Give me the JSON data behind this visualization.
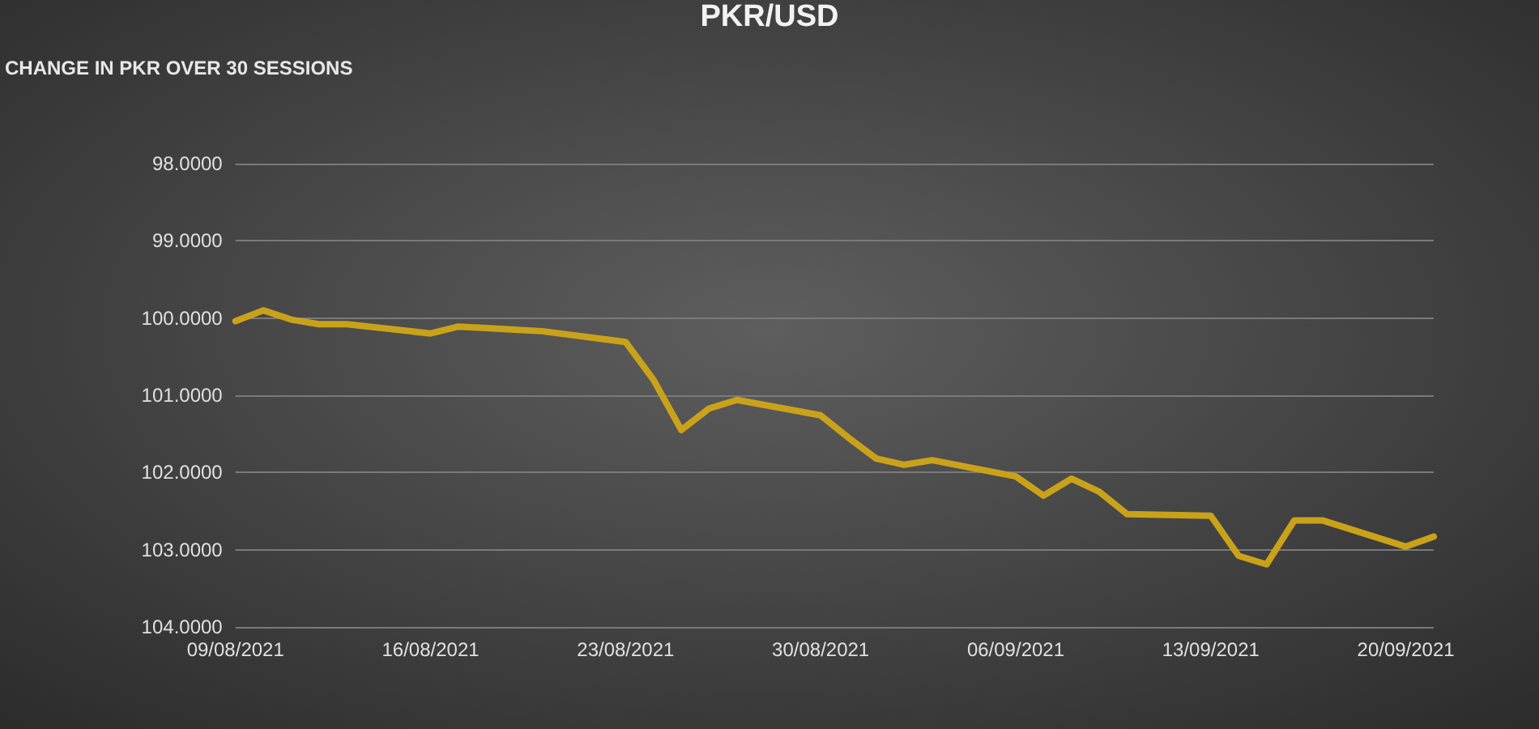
{
  "chart_data": {
    "type": "line",
    "title": "PKR/USD",
    "ylabel": "CHANGE IN PKR OVER 30 SESSIONS",
    "x": [
      "2021-08-09",
      "2021-08-10",
      "2021-08-11",
      "2021-08-12",
      "2021-08-13",
      "2021-08-16",
      "2021-08-17",
      "2021-08-18",
      "2021-08-19",
      "2021-08-20",
      "2021-08-23",
      "2021-08-24",
      "2021-08-25",
      "2021-08-26",
      "2021-08-27",
      "2021-08-30",
      "2021-08-31",
      "2021-09-01",
      "2021-09-02",
      "2021-09-03",
      "2021-09-06",
      "2021-09-07",
      "2021-09-08",
      "2021-09-09",
      "2021-09-10",
      "2021-09-13",
      "2021-09-14",
      "2021-09-15",
      "2021-09-16",
      "2021-09-17",
      "2021-09-20",
      "2021-09-21"
    ],
    "series": [
      {
        "color": "#c9a21a",
        "values": [
          100.04,
          99.9,
          100.02,
          100.08,
          100.08,
          100.2,
          100.11,
          100.13,
          100.15,
          100.17,
          100.31,
          100.8,
          101.45,
          101.17,
          101.06,
          101.26,
          101.55,
          101.82,
          101.9,
          101.84,
          102.05,
          102.3,
          102.08,
          102.25,
          102.54,
          102.56,
          103.08,
          103.19,
          102.62,
          102.62,
          102.96,
          102.83
        ]
      }
    ],
    "xlim": [
      "2021-08-09",
      "2021-09-21"
    ],
    "xticks": [
      {
        "value": "2021-08-09",
        "label": "09/08/2021"
      },
      {
        "value": "2021-08-16",
        "label": "16/08/2021"
      },
      {
        "value": "2021-08-23",
        "label": "23/08/2021"
      },
      {
        "value": "2021-08-30",
        "label": "30/08/2021"
      },
      {
        "value": "2021-09-06",
        "label": "06/09/2021"
      },
      {
        "value": "2021-09-13",
        "label": "13/09/2021"
      },
      {
        "value": "2021-09-20",
        "label": "20/09/2021"
      }
    ],
    "ylim": [
      104,
      98
    ],
    "yticks": [
      {
        "value": 98,
        "label": "98.0000"
      },
      {
        "value": 99,
        "label": "99.0000"
      },
      {
        "value": 100,
        "label": "100.0000"
      },
      {
        "value": 101,
        "label": "101.0000"
      },
      {
        "value": 102,
        "label": "102.0000"
      },
      {
        "value": 103,
        "label": "103.0000"
      },
      {
        "value": 104,
        "label": "104.0000"
      }
    ],
    "grid": "y",
    "marker": "none",
    "line_style": "solid"
  }
}
